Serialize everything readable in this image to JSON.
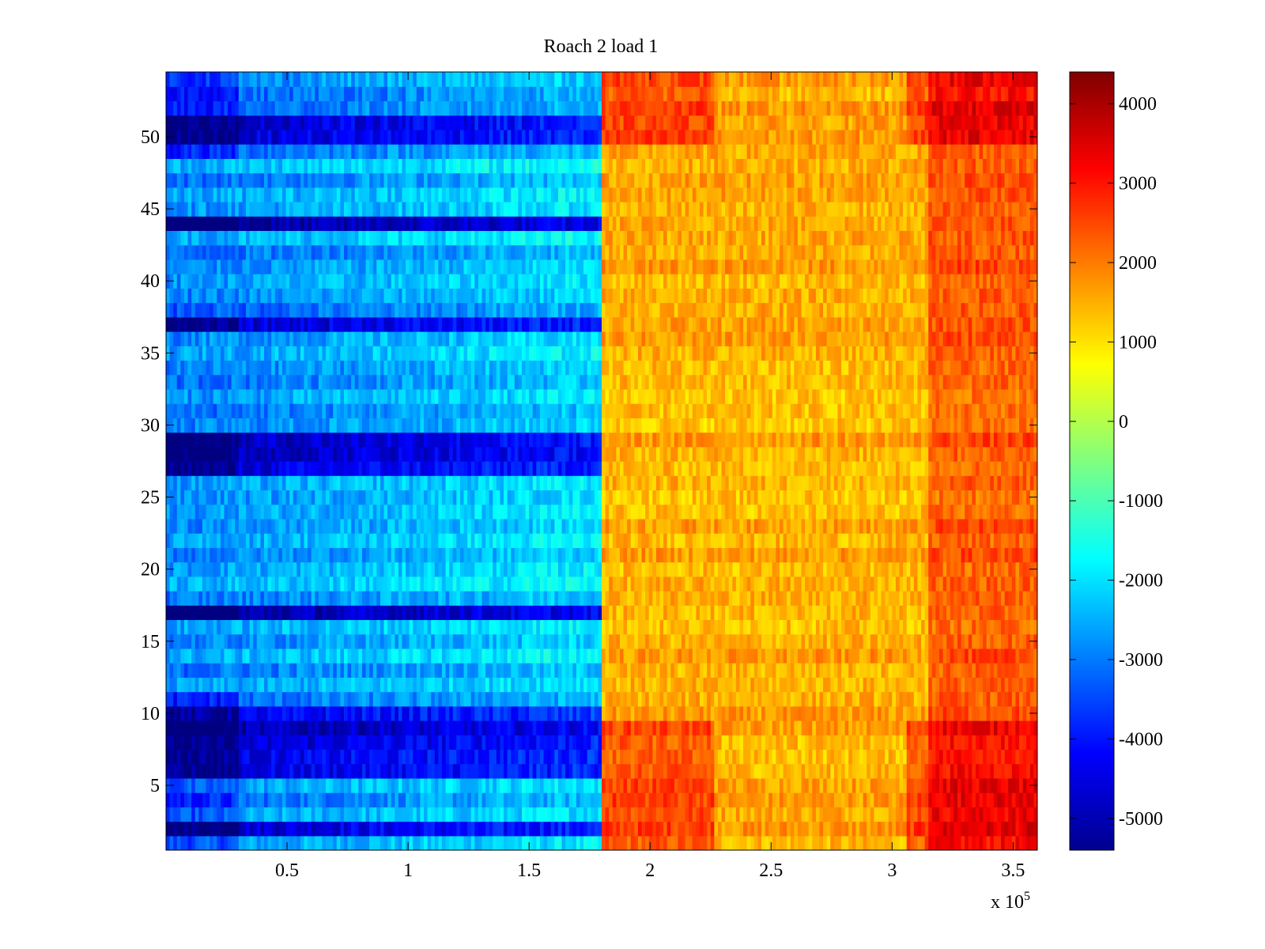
{
  "chart_data": {
    "type": "heatmap",
    "title": "Roach 2 load 1",
    "xlabel": "",
    "ylabel": "",
    "x_range": [
      0,
      3.6
    ],
    "x_exponent_label": "x 10",
    "x_exponent_power": "5",
    "y_range": [
      0.5,
      54.5
    ],
    "rows": 54,
    "x_ticks": [
      0.5,
      1,
      1.5,
      2,
      2.5,
      3,
      3.5
    ],
    "x_tick_labels": [
      "0.5",
      "1",
      "1.5",
      "2",
      "2.5",
      "3",
      "3.5"
    ],
    "y_ticks": [
      5,
      10,
      15,
      20,
      25,
      30,
      35,
      40,
      45,
      50
    ],
    "y_tick_labels": [
      "5",
      "10",
      "15",
      "20",
      "25",
      "30",
      "35",
      "40",
      "45",
      "50"
    ],
    "colormap": "jet",
    "clim": [
      -5400,
      4400
    ],
    "colorbar_ticks": [
      4000,
      3000,
      2000,
      1000,
      0,
      -1000,
      -2000,
      -3000,
      -4000,
      -5000
    ],
    "colorbar_tick_labels": [
      "4000",
      "3000",
      "2000",
      "1000",
      "0",
      "-1000",
      "-2000",
      "-3000",
      "-4000",
      "-5000"
    ],
    "switch_x": 1.79,
    "left_block_mean": -2500,
    "right_block_mean": 1500,
    "dark_rows": [
      2,
      6,
      7,
      8,
      9,
      10,
      17,
      27,
      28,
      29,
      37,
      44,
      50,
      51
    ],
    "hot_rows": [
      1,
      2,
      3,
      4,
      5,
      6,
      7,
      8,
      9,
      50,
      51,
      52,
      53,
      54
    ],
    "grid": false
  }
}
